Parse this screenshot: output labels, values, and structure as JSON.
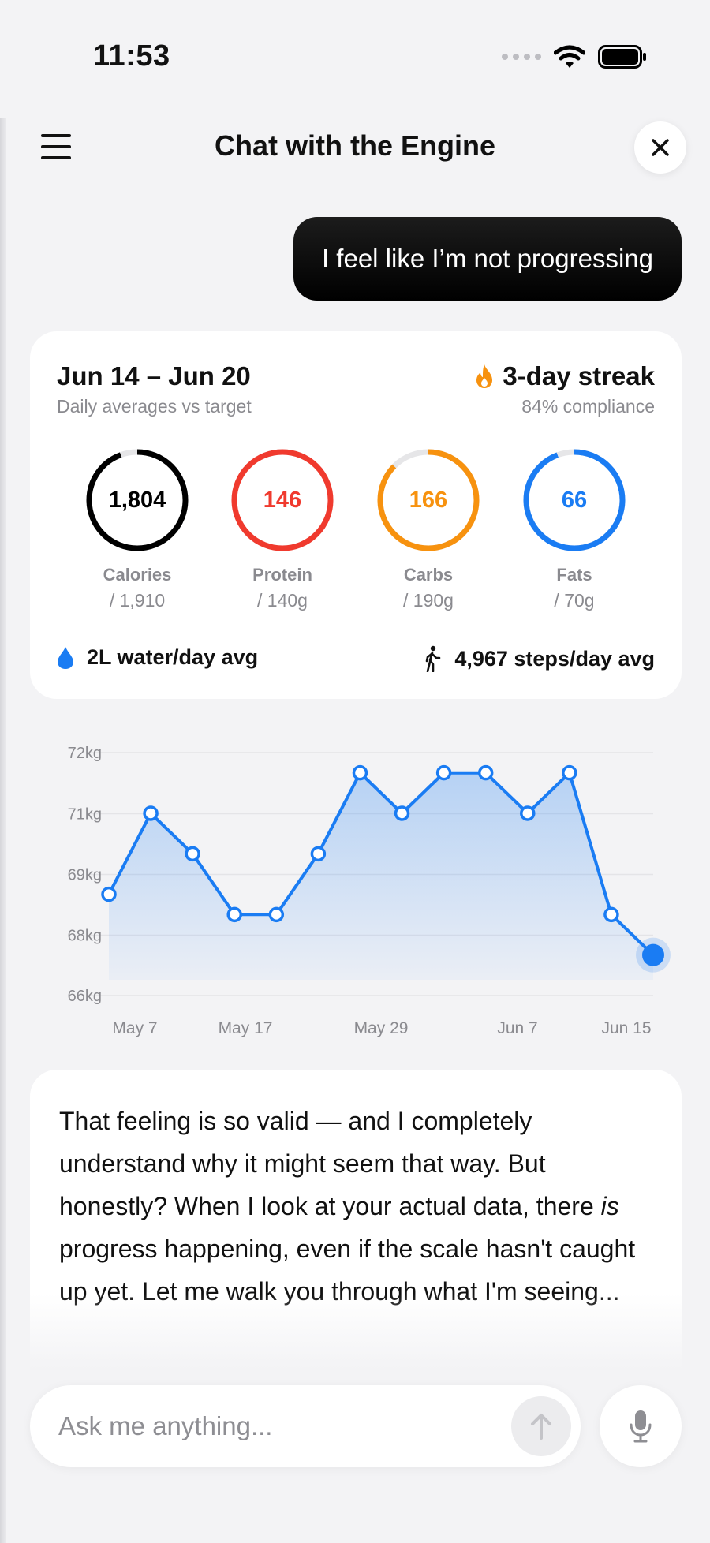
{
  "status_bar": {
    "time": "11:53",
    "icons": [
      "signal-dots-icon",
      "wifi-icon",
      "battery-icon"
    ]
  },
  "header": {
    "title": "Chat with the Engine",
    "menu_icon": "hamburger-menu-icon",
    "close_icon": "close-icon"
  },
  "user_message": "I feel like I’m not progressing",
  "summary": {
    "range": "Jun 14 – Jun 20",
    "subtitle": "Daily averages vs target",
    "streak": "3-day streak",
    "compliance": "84% compliance",
    "metrics": [
      {
        "label": "Calories",
        "value": "1,804",
        "target": "/ 1,910",
        "progress": 0.944,
        "color": "#000000"
      },
      {
        "label": "Protein",
        "value": "146",
        "target": "/ 140g",
        "progress": 1.0,
        "color": "#f03a2e"
      },
      {
        "label": "Carbs",
        "value": "166",
        "target": "/ 190g",
        "progress": 0.874,
        "color": "#f7920f"
      },
      {
        "label": "Fats",
        "value": "66",
        "target": "/ 70g",
        "progress": 0.943,
        "color": "#1a7cf3"
      }
    ],
    "water": "2L water/day avg",
    "steps": "4,967 steps/day avg"
  },
  "chart_data": {
    "type": "area",
    "y_ticks": [
      "72kg",
      "71kg",
      "69kg",
      "68kg",
      "66kg"
    ],
    "x_ticks": [
      "May 7",
      "May 17",
      "May 29",
      "Jun 7",
      "Jun 15"
    ],
    "ylim": [
      66,
      72
    ],
    "values": [
      68.5,
      70.5,
      69.5,
      68.0,
      68.0,
      69.5,
      71.5,
      70.5,
      71.5,
      71.5,
      70.5,
      71.5,
      68.0,
      67.0
    ],
    "line_color": "#1a7cf3",
    "grid": true
  },
  "reply": {
    "before": "That feeling is so valid — and I completely understand why it might seem that way. But honestly? When I look at your actual data, there ",
    "emphasis": "is",
    "after": " progress happening, even if the scale hasn't caught up yet. Let me walk you through what I'm seeing..."
  },
  "input": {
    "placeholder": "Ask me anything...",
    "send_icon": "arrow-up-icon",
    "mic_icon": "microphone-icon"
  }
}
